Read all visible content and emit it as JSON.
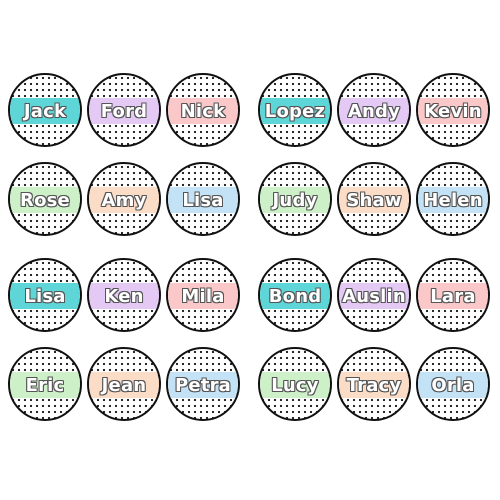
{
  "colors": {
    "teal": "#5ed6d8",
    "lavender": "#e3c9f4",
    "pink": "#fac8c8",
    "mint": "#cdf0c9",
    "peach": "#fbdcc6",
    "sky": "#c4e2f5"
  },
  "groups": [
    {
      "names": [
        "Jack",
        "Ford",
        "Nick",
        "Rose",
        "Amy",
        "Lisa"
      ]
    },
    {
      "names": [
        "Lopez",
        "Andy",
        "Kevin",
        "Judy",
        "Shaw",
        "Helen"
      ]
    },
    {
      "names": [
        "Lisa",
        "Ken",
        "Mila",
        "Eric",
        "Jean",
        "Petra"
      ]
    },
    {
      "names": [
        "Bond",
        "Auslin",
        "Lara",
        "Lucy",
        "Tracy",
        "Orla"
      ]
    }
  ]
}
